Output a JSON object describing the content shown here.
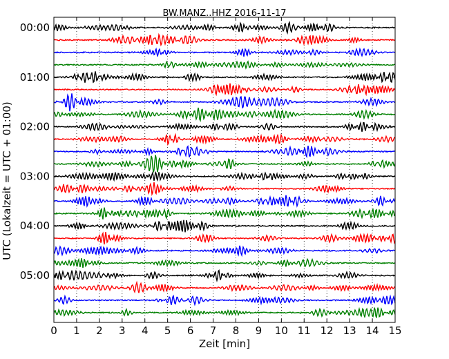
{
  "chart_data": {
    "type": "line",
    "title": "BW.MANZ..HHZ 2016-11-17",
    "xlabel": "Zeit  [min]",
    "ylabel": "UTC (Lokalzeit = UTC + 01:00)",
    "xlim": [
      0,
      15
    ],
    "x_ticks": [
      "0",
      "1",
      "2",
      "3",
      "4",
      "5",
      "6",
      "7",
      "8",
      "9",
      "10",
      "11",
      "12",
      "13",
      "14",
      "15"
    ],
    "y_tick_labels": [
      "00:00",
      "01:00",
      "02:00",
      "03:00",
      "04:00",
      "05:00"
    ],
    "grid": "vertical dotted",
    "trace_colors": [
      "#000000",
      "#ff0000",
      "#0000ff",
      "#008000"
    ],
    "traces": [
      {
        "time": "00:00",
        "color": "#000000"
      },
      {
        "time": "00:15",
        "color": "#ff0000"
      },
      {
        "time": "00:30",
        "color": "#0000ff"
      },
      {
        "time": "00:45",
        "color": "#008000"
      },
      {
        "time": "01:00",
        "color": "#000000"
      },
      {
        "time": "01:15",
        "color": "#ff0000"
      },
      {
        "time": "01:30",
        "color": "#0000ff"
      },
      {
        "time": "01:45",
        "color": "#008000"
      },
      {
        "time": "02:00",
        "color": "#000000"
      },
      {
        "time": "02:15",
        "color": "#ff0000"
      },
      {
        "time": "02:30",
        "color": "#0000ff"
      },
      {
        "time": "02:45",
        "color": "#008000"
      },
      {
        "time": "03:00",
        "color": "#000000"
      },
      {
        "time": "03:15",
        "color": "#ff0000"
      },
      {
        "time": "03:30",
        "color": "#0000ff"
      },
      {
        "time": "03:45",
        "color": "#008000"
      },
      {
        "time": "04:00",
        "color": "#000000"
      },
      {
        "time": "04:15",
        "color": "#ff0000"
      },
      {
        "time": "04:30",
        "color": "#0000ff"
      },
      {
        "time": "04:45",
        "color": "#008000"
      },
      {
        "time": "05:00",
        "color": "#000000"
      },
      {
        "time": "05:15",
        "color": "#ff0000"
      },
      {
        "time": "05:30",
        "color": "#0000ff"
      },
      {
        "time": "05:45",
        "color": "#008000"
      }
    ]
  }
}
